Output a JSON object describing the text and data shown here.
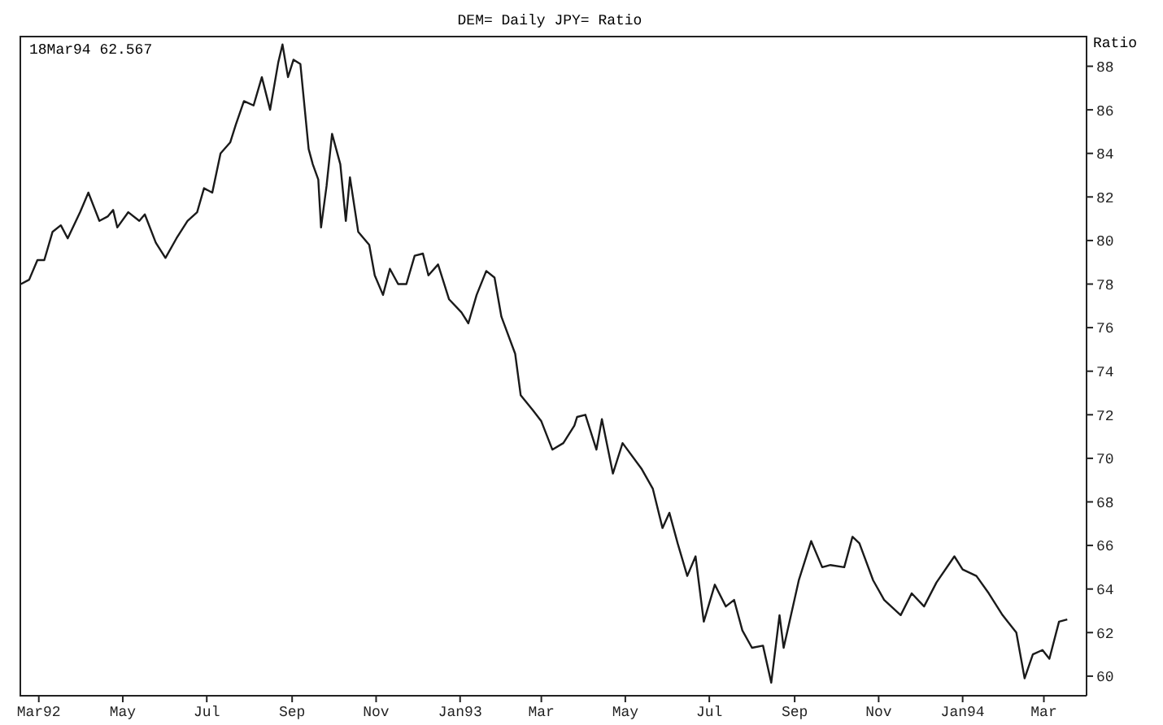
{
  "chart_data": {
    "type": "line",
    "title": "DEM= Daily JPY= Ratio",
    "ylabel": "Ratio",
    "annotations": [
      "18Mar94 62.567"
    ],
    "x": [
      "1992-02-17",
      "1992-02-23",
      "1992-02-29",
      "1992-03-05",
      "1992-03-11",
      "1992-03-17",
      "1992-03-22",
      "1992-03-28",
      "1992-03-31",
      "1992-04-06",
      "1992-04-14",
      "1992-04-20",
      "1992-04-24",
      "1992-04-27",
      "1992-05-05",
      "1992-05-13",
      "1992-05-17",
      "1992-05-25",
      "1992-06-01",
      "1992-06-09",
      "1992-06-17",
      "1992-06-24",
      "1992-06-29",
      "1992-07-05",
      "1992-07-11",
      "1992-07-18",
      "1992-07-22",
      "1992-07-28",
      "1992-08-04",
      "1992-08-10",
      "1992-08-16",
      "1992-08-22",
      "1992-08-25",
      "1992-08-29",
      "1992-09-02",
      "1992-09-07",
      "1992-09-13",
      "1992-09-16",
      "1992-09-20",
      "1992-09-22",
      "1992-09-26",
      "1992-09-30",
      "1992-10-06",
      "1992-10-10",
      "1992-10-13",
      "1992-10-19",
      "1992-10-27",
      "1992-10-31",
      "1992-11-06",
      "1992-11-11",
      "1992-11-17",
      "1992-11-23",
      "1992-11-29",
      "1992-12-05",
      "1992-12-09",
      "1992-12-16",
      "1992-12-24",
      "1993-01-02",
      "1993-01-07",
      "1993-01-13",
      "1993-01-20",
      "1993-01-26",
      "1993-01-31",
      "1993-02-10",
      "1993-02-14",
      "1993-02-23",
      "1993-03-01",
      "1993-03-09",
      "1993-03-17",
      "1993-03-25",
      "1993-03-27",
      "1993-04-02",
      "1993-04-10",
      "1993-04-14",
      "1993-04-22",
      "1993-04-29",
      "1993-05-13",
      "1993-05-21",
      "1993-05-28",
      "1993-06-02",
      "1993-06-08",
      "1993-06-15",
      "1993-06-21",
      "1993-06-27",
      "1993-07-05",
      "1993-07-13",
      "1993-07-19",
      "1993-07-25",
      "1993-08-01",
      "1993-08-09",
      "1993-08-15",
      "1993-08-21",
      "1993-08-24",
      "1993-09-04",
      "1993-09-13",
      "1993-09-21",
      "1993-09-27",
      "1993-10-07",
      "1993-10-13",
      "1993-10-18",
      "1993-10-28",
      "1993-11-05",
      "1993-11-17",
      "1993-11-25",
      "1993-12-04",
      "1993-12-13",
      "1993-12-26",
      "1994-01-01",
      "1994-01-11",
      "1994-01-20",
      "1994-01-30",
      "1994-02-09",
      "1994-02-15",
      "1994-02-21",
      "1994-02-28",
      "1994-03-05",
      "1994-03-12",
      "1994-03-18"
    ],
    "series": [
      {
        "color": "#1a1a1a",
        "values": [
          78.0,
          78.2,
          79.1,
          79.1,
          80.4,
          80.7,
          80.1,
          80.9,
          81.3,
          82.2,
          80.9,
          81.1,
          81.4,
          80.6,
          81.3,
          80.9,
          81.2,
          79.9,
          79.2,
          80.1,
          80.9,
          81.3,
          82.4,
          82.2,
          84.0,
          84.5,
          85.3,
          86.4,
          86.2,
          87.5,
          86.0,
          88.2,
          89.0,
          87.5,
          88.3,
          88.1,
          84.2,
          83.5,
          82.8,
          80.6,
          82.5,
          84.9,
          83.5,
          80.9,
          82.9,
          80.4,
          79.8,
          78.4,
          77.5,
          78.7,
          78.0,
          78.0,
          79.3,
          79.4,
          78.4,
          78.9,
          77.3,
          76.7,
          76.2,
          77.5,
          78.6,
          78.3,
          76.5,
          74.8,
          72.9,
          72.2,
          71.7,
          70.4,
          70.7,
          71.5,
          71.9,
          72.0,
          70.4,
          71.8,
          69.3,
          70.7,
          69.5,
          68.6,
          66.8,
          67.5,
          66.1,
          64.6,
          65.5,
          62.5,
          64.2,
          63.2,
          63.5,
          62.1,
          61.3,
          61.4,
          59.7,
          62.8,
          61.3,
          64.4,
          66.2,
          65.0,
          65.1,
          65.0,
          66.4,
          66.1,
          64.4,
          63.5,
          62.8,
          63.8,
          63.2,
          64.3,
          65.5,
          64.9,
          64.6,
          63.8,
          62.8,
          62.0,
          59.9,
          61.0,
          61.2,
          60.8,
          62.5,
          62.6
        ]
      }
    ],
    "xlim": [
      "1992-02-16",
      "1994-04-01"
    ],
    "xticks": [
      {
        "value": "1992-03-01",
        "label": "Mar92"
      },
      {
        "value": "1992-05-01",
        "label": "May"
      },
      {
        "value": "1992-07-01",
        "label": "Jul"
      },
      {
        "value": "1992-09-01",
        "label": "Sep"
      },
      {
        "value": "1992-11-01",
        "label": "Nov"
      },
      {
        "value": "1993-01-01",
        "label": "Jan93"
      },
      {
        "value": "1993-03-01",
        "label": "Mar"
      },
      {
        "value": "1993-05-01",
        "label": "May"
      },
      {
        "value": "1993-07-01",
        "label": "Jul"
      },
      {
        "value": "1993-09-01",
        "label": "Sep"
      },
      {
        "value": "1993-11-01",
        "label": "Nov"
      },
      {
        "value": "1994-01-01",
        "label": "Jan94"
      },
      {
        "value": "1994-03-01",
        "label": "Mar"
      }
    ],
    "ylim": [
      59.1,
      89.4
    ],
    "yticks": [
      60,
      62,
      64,
      66,
      68,
      70,
      72,
      74,
      76,
      78,
      80,
      82,
      84,
      86,
      88
    ],
    "marker": "none",
    "line_style": "solid"
  }
}
